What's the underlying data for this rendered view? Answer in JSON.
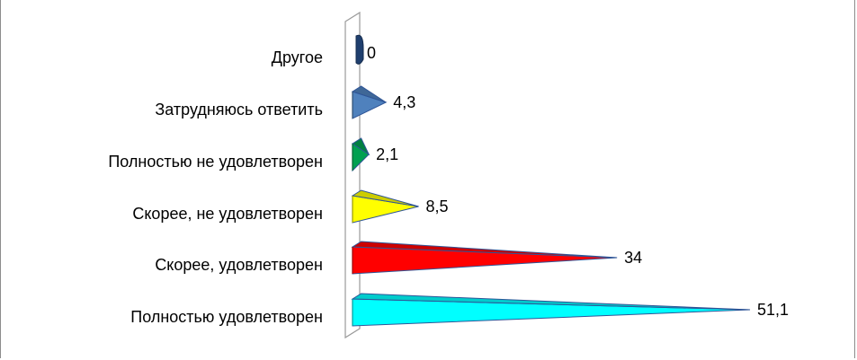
{
  "chart_data": {
    "type": "bar",
    "orientation": "horizontal",
    "style": "3d-cone",
    "title": "",
    "xlabel": "",
    "ylabel": "",
    "categories": [
      "Другое",
      "Затрудняюсь ответить",
      "Полностью не удовлетворен",
      "Скорее, не удовлетворен",
      "Скорее, удовлетворен",
      "Полностью удовлетворен"
    ],
    "values": [
      0,
      4.3,
      2.1,
      8.5,
      34,
      51.1
    ],
    "value_labels": [
      "0",
      "4,3",
      "2,1",
      "8,5",
      "34",
      "51,1"
    ],
    "colors": [
      "#1f3f6e",
      "#4f81bd",
      "#00a050",
      "#ffff00",
      "#ff0000",
      "#00ffff"
    ],
    "xlim": [
      0,
      53
    ],
    "grid": false,
    "legend": "none"
  }
}
